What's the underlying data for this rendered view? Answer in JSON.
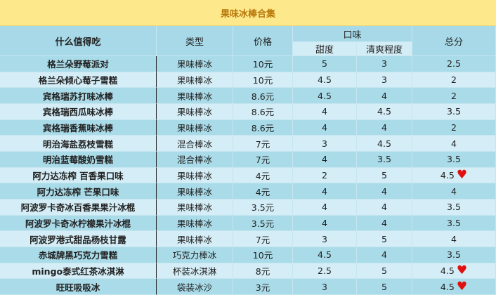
{
  "title": "果味冰棒合集",
  "headers": {
    "name": "什么值得吃",
    "type": "类型",
    "price": "价格",
    "taste": "口味",
    "sweet": "甜度",
    "fresh": "清爽程度",
    "total": "总分"
  },
  "rows": [
    {
      "name": "格兰朵野莓派对",
      "type": "果味棒冰",
      "price": "10元",
      "sweet": "5",
      "fresh": "3",
      "total": "2.5",
      "heart": false
    },
    {
      "name": "格兰朵倾心莓子雪糕",
      "type": "果味棒冰",
      "price": "10元",
      "sweet": "4.5",
      "fresh": "3",
      "total": "2",
      "heart": false
    },
    {
      "name": "宾格瑞苏打味冰棒",
      "type": "果味棒冰",
      "price": "8.6元",
      "sweet": "4.5",
      "fresh": "4",
      "total": "2",
      "heart": false
    },
    {
      "name": "宾格瑞西瓜味冰棒",
      "type": "果味棒冰",
      "price": "8.6元",
      "sweet": "4",
      "fresh": "4.5",
      "total": "3.5",
      "heart": false
    },
    {
      "name": "宾格瑞香蕉味冰棒",
      "type": "果味棒冰",
      "price": "8.6元",
      "sweet": "4",
      "fresh": "4",
      "total": "2",
      "heart": false
    },
    {
      "name": "明治海盐荔枝雪糕",
      "type": "混合棒冰",
      "price": "7元",
      "sweet": "3",
      "fresh": "4.5",
      "total": "4",
      "heart": false
    },
    {
      "name": "明治蓝莓酸奶雪糕",
      "type": "混合棒冰",
      "price": "7元",
      "sweet": "4",
      "fresh": "3.5",
      "total": "3.5",
      "heart": false
    },
    {
      "name": "阿力达冻榨 百香果口味",
      "type": "果味棒冰",
      "price": "4元",
      "sweet": "2",
      "fresh": "5",
      "total": "4.5",
      "heart": true
    },
    {
      "name": "阿力达冻榨 芒果口味",
      "type": "果味棒冰",
      "price": "4元",
      "sweet": "4",
      "fresh": "4",
      "total": "4",
      "heart": false
    },
    {
      "name": "阿波罗卡奇冰百香果果汁冰棍",
      "type": "果味棒冰",
      "price": "3.5元",
      "sweet": "4",
      "fresh": "4",
      "total": "3.5",
      "heart": false
    },
    {
      "name": "阿波罗卡奇冰柠檬果汁冰棍",
      "type": "果味棒冰",
      "price": "3.5元",
      "sweet": "4",
      "fresh": "4",
      "total": "3.5",
      "heart": false
    },
    {
      "name": "阿波罗港式甜品杨枝甘露",
      "type": "果味棒冰",
      "price": "7元",
      "sweet": "3",
      "fresh": "5",
      "total": "4",
      "heart": false
    },
    {
      "name": "赤城牌黑巧克力雪糕",
      "type": "巧克力棒冰",
      "price": "10元",
      "sweet": "4.5",
      "fresh": "4",
      "total": "3.5",
      "heart": false
    },
    {
      "name": "mingo泰式红茶冰淇淋",
      "type": "杯装冰淇淋",
      "price": "8元",
      "sweet": "2.5",
      "fresh": "5",
      "total": "4.5",
      "heart": true
    },
    {
      "name": "旺旺吸吸冰",
      "type": "袋装冰沙",
      "price": "3元",
      "sweet": "3",
      "fresh": "5",
      "total": "4.5",
      "heart": true
    }
  ],
  "colors": {
    "title_bg": "#fde98c",
    "title_text": "#b8780a",
    "header_bg": "#a7d9e8",
    "row_dark": "#a9dbe9",
    "row_light": "#d4edf6",
    "heart": "#e01010"
  },
  "heart_icon": "♥"
}
